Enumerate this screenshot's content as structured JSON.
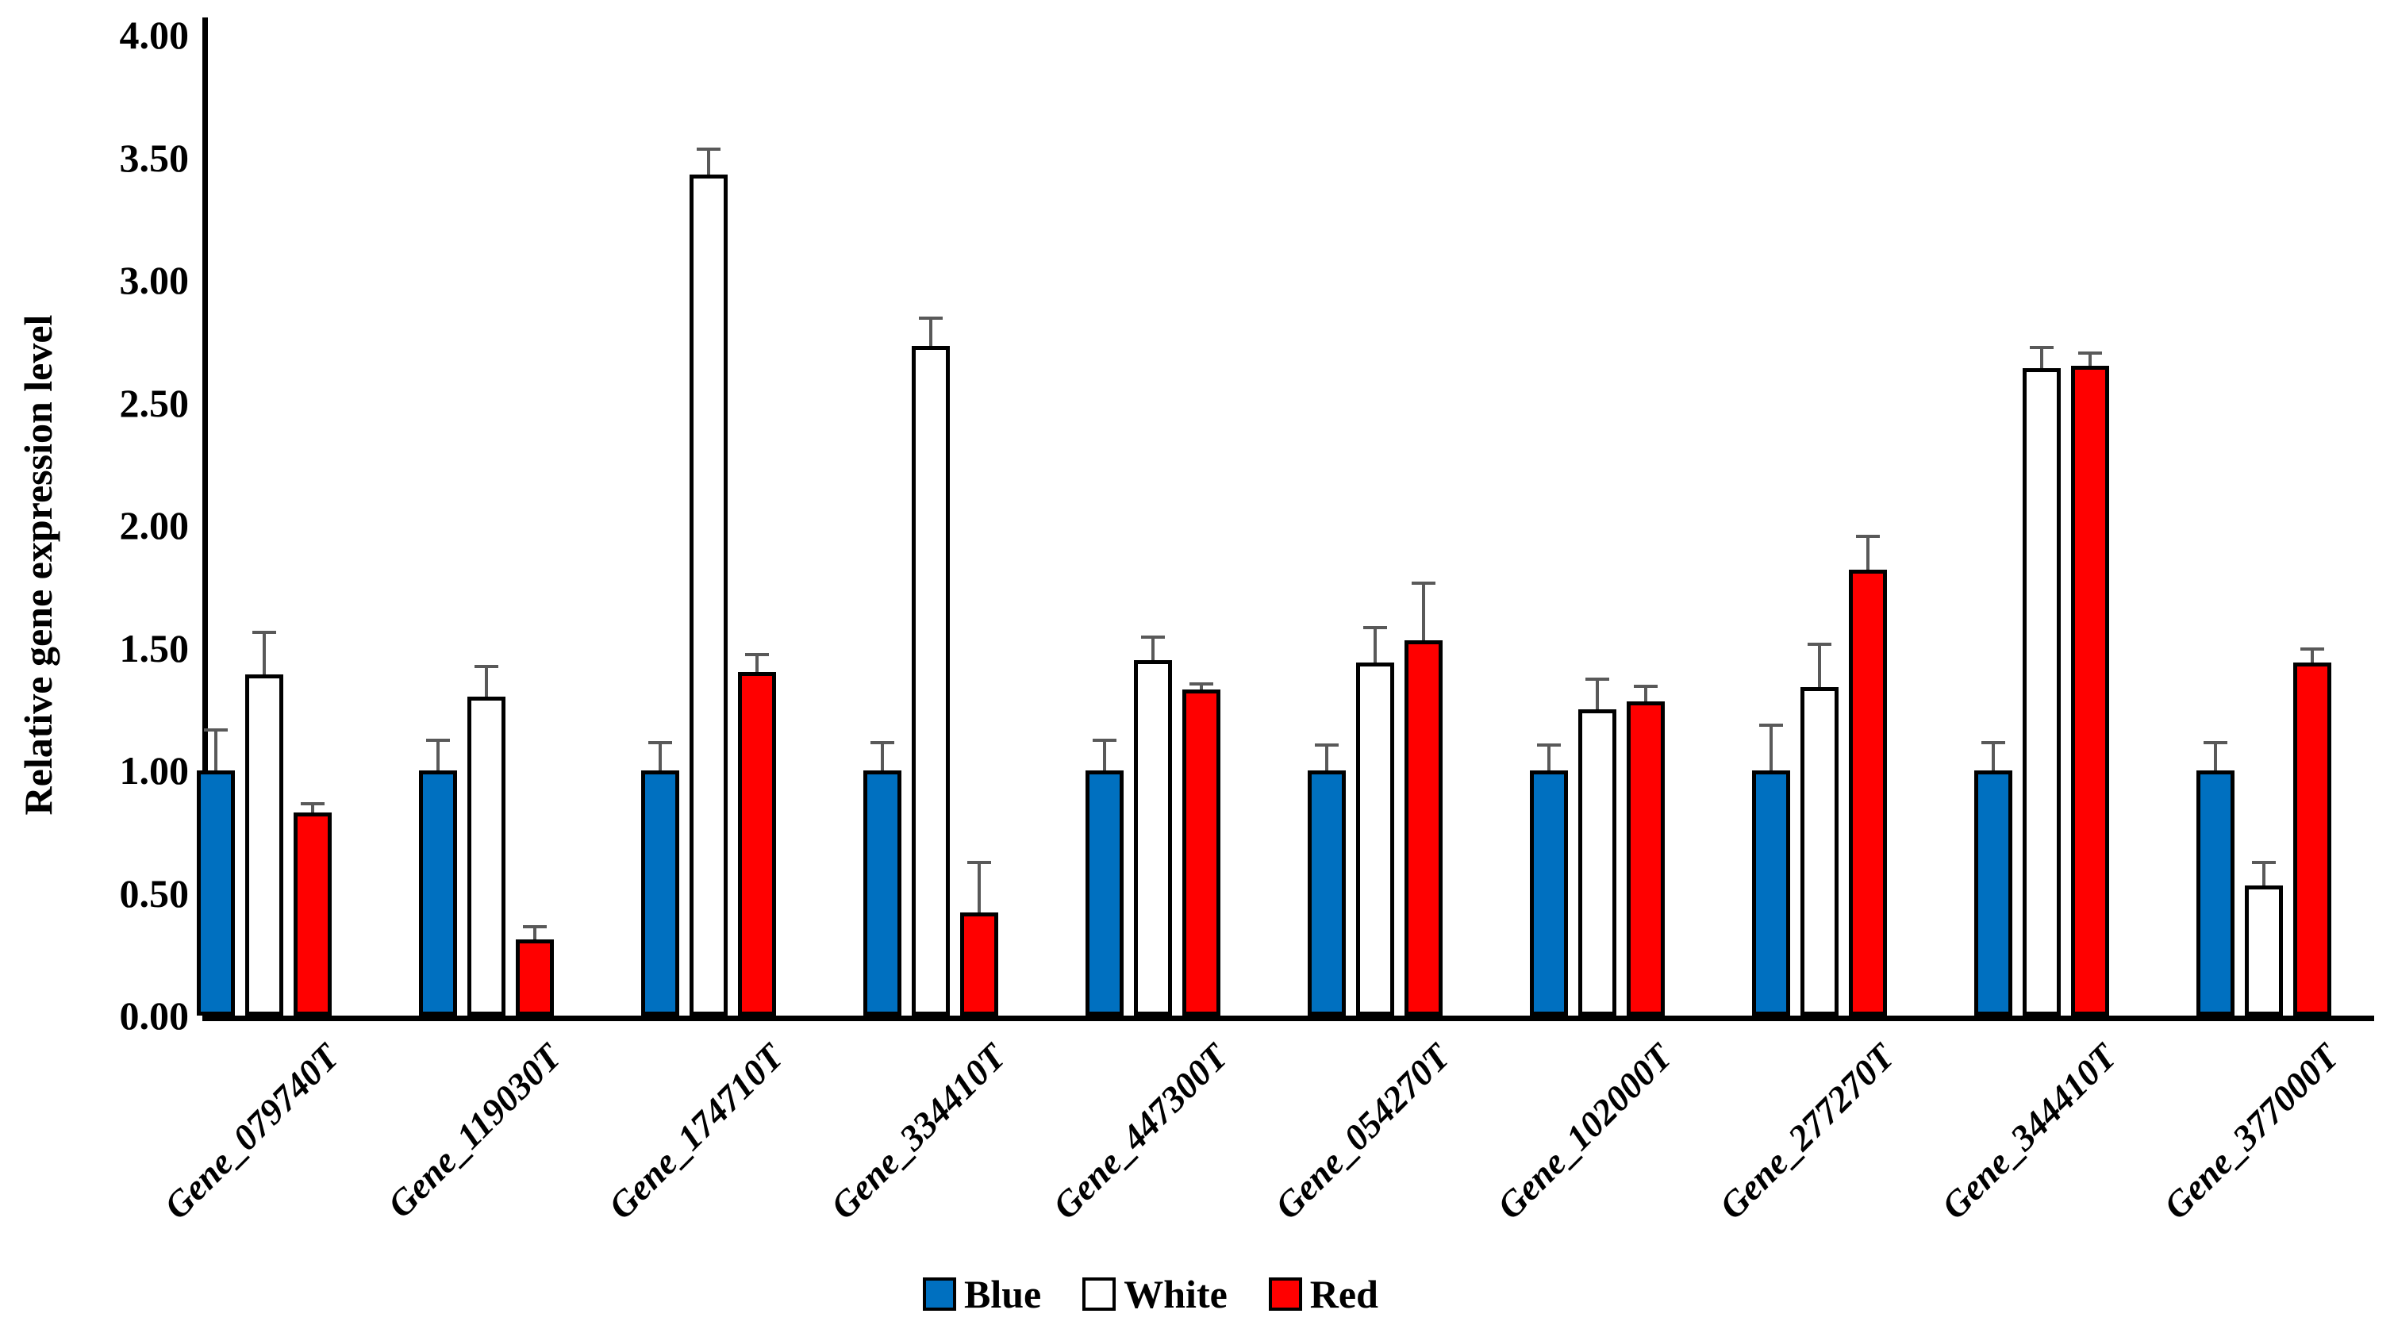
{
  "chart_data": {
    "type": "bar",
    "title": "",
    "ylabel": "Relative gene expression level",
    "xlabel": "",
    "ylim": [
      0,
      4
    ],
    "ytick_step": 0.5,
    "ytick_labels": [
      "0.00",
      "0.50",
      "1.00",
      "1.50",
      "2.00",
      "2.50",
      "3.00",
      "3.50",
      "4.00"
    ],
    "grid": false,
    "legend_position": "bottom",
    "categories": [
      "Gene_079740T",
      "Gene_119030T",
      "Gene_174710T",
      "Gene_334410T",
      "Gene_447300T",
      "Gene_054270T",
      "Gene_102000T",
      "Gene_277270T",
      "Gene_344410T",
      "Gene_377000T"
    ],
    "series": [
      {
        "name": "Blue",
        "fill": "#0070C0",
        "values": [
          1.0,
          1.0,
          1.0,
          1.0,
          1.0,
          1.0,
          1.0,
          1.0,
          1.0,
          1.0
        ],
        "errors_plus": [
          0.17,
          0.13,
          0.12,
          0.12,
          0.13,
          0.11,
          0.11,
          0.19,
          0.12,
          0.12
        ]
      },
      {
        "name": "White",
        "fill": "#FFFFFF",
        "values": [
          1.39,
          1.3,
          3.43,
          2.73,
          1.45,
          1.44,
          1.25,
          1.34,
          2.64,
          0.53
        ],
        "errors_plus": [
          0.18,
          0.13,
          0.11,
          0.12,
          0.1,
          0.15,
          0.13,
          0.18,
          0.09,
          0.1
        ]
      },
      {
        "name": "Red",
        "fill": "#FF0000",
        "values": [
          0.83,
          0.31,
          1.4,
          0.42,
          1.33,
          1.53,
          1.28,
          1.82,
          2.65,
          1.44
        ],
        "errors_plus": [
          0.04,
          0.06,
          0.08,
          0.21,
          0.03,
          0.24,
          0.07,
          0.14,
          0.06,
          0.06
        ]
      }
    ],
    "bar_outline_color": "#000000",
    "error_bar_color": "#595959",
    "axis_color": "#000000"
  }
}
